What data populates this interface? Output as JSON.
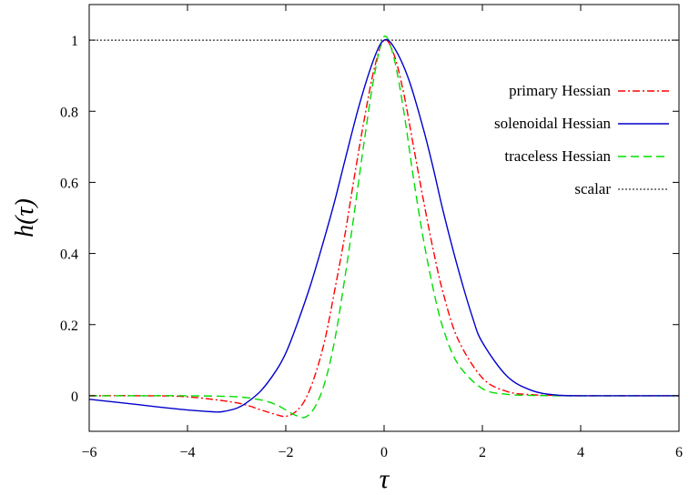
{
  "chart_data": {
    "type": "line",
    "title": "",
    "xlabel": "τ",
    "ylabel": "h(τ)",
    "xlim": [
      -6,
      6
    ],
    "ylim": [
      -0.1,
      1.1
    ],
    "x_ticks": [
      -6,
      -4,
      -2,
      0,
      2,
      4,
      6
    ],
    "x_tick_labels": [
      "−6",
      "−4",
      "−2",
      "0",
      "2",
      "4",
      "6"
    ],
    "y_ticks": [
      0,
      0.2,
      0.4,
      0.6,
      0.8,
      1
    ],
    "y_tick_labels": [
      "0",
      "0.2",
      "0.4",
      "0.6",
      "0.8",
      "1"
    ],
    "grid": false,
    "legend_position": "right",
    "series": [
      {
        "name": "primary Hessian",
        "color": "#ff0000",
        "dash": "dash-dot",
        "x": [
          -6,
          -5,
          -4,
          -3,
          -2.5,
          -2.2,
          -2.0,
          -1.8,
          -1.6,
          -1.4,
          -1.2,
          -1.0,
          -0.8,
          -0.6,
          -0.4,
          -0.2,
          0,
          0.2,
          0.4,
          0.6,
          0.8,
          1.0,
          1.2,
          1.5,
          2.0,
          2.5,
          3.0,
          3.5,
          4,
          5,
          6
        ],
        "y": [
          0,
          0,
          -0.003,
          -0.02,
          -0.04,
          -0.053,
          -0.058,
          -0.045,
          -0.01,
          0.06,
          0.16,
          0.3,
          0.45,
          0.62,
          0.78,
          0.92,
          1.0,
          0.96,
          0.85,
          0.7,
          0.55,
          0.41,
          0.29,
          0.16,
          0.05,
          0.012,
          0.003,
          0.001,
          0,
          0,
          0
        ]
      },
      {
        "name": "solenoidal Hessian",
        "color": "#0000cc",
        "dash": "solid",
        "x": [
          -6,
          -5,
          -4.5,
          -4,
          -3.5,
          -3.3,
          -3.0,
          -2.8,
          -2.5,
          -2.2,
          -2.0,
          -1.8,
          -1.5,
          -1.2,
          -1.0,
          -0.8,
          -0.5,
          -0.2,
          0,
          0.2,
          0.5,
          0.8,
          1.0,
          1.2,
          1.5,
          1.8,
          2.0,
          2.5,
          3.0,
          3.5,
          4,
          5,
          6
        ],
        "y": [
          -0.01,
          -0.025,
          -0.033,
          -0.04,
          -0.045,
          -0.045,
          -0.035,
          -0.02,
          0.015,
          0.07,
          0.12,
          0.19,
          0.31,
          0.45,
          0.55,
          0.66,
          0.82,
          0.95,
          1.0,
          0.98,
          0.89,
          0.75,
          0.64,
          0.52,
          0.36,
          0.22,
          0.15,
          0.055,
          0.015,
          0.002,
          0,
          0,
          0
        ]
      },
      {
        "name": "traceless Hessian",
        "color": "#00dd00",
        "dash": "dashed",
        "x": [
          -6,
          -5,
          -4,
          -3,
          -2.5,
          -2.2,
          -2.0,
          -1.8,
          -1.6,
          -1.4,
          -1.2,
          -1.0,
          -0.8,
          -0.6,
          -0.4,
          -0.2,
          0,
          0.2,
          0.4,
          0.6,
          0.8,
          1.0,
          1.2,
          1.5,
          2.0,
          2.5,
          3.0,
          3.5,
          4,
          5,
          6
        ],
        "y": [
          0,
          0,
          0,
          -0.003,
          -0.012,
          -0.025,
          -0.04,
          -0.055,
          -0.06,
          -0.03,
          0.04,
          0.16,
          0.33,
          0.52,
          0.72,
          0.9,
          1.01,
          0.95,
          0.8,
          0.61,
          0.44,
          0.3,
          0.19,
          0.09,
          0.02,
          0.004,
          0.001,
          0,
          0,
          0,
          0
        ]
      },
      {
        "name": "scalar",
        "color": "#000000",
        "dash": "dotted",
        "x": [
          -6,
          6
        ],
        "y": [
          1,
          1
        ]
      }
    ]
  }
}
